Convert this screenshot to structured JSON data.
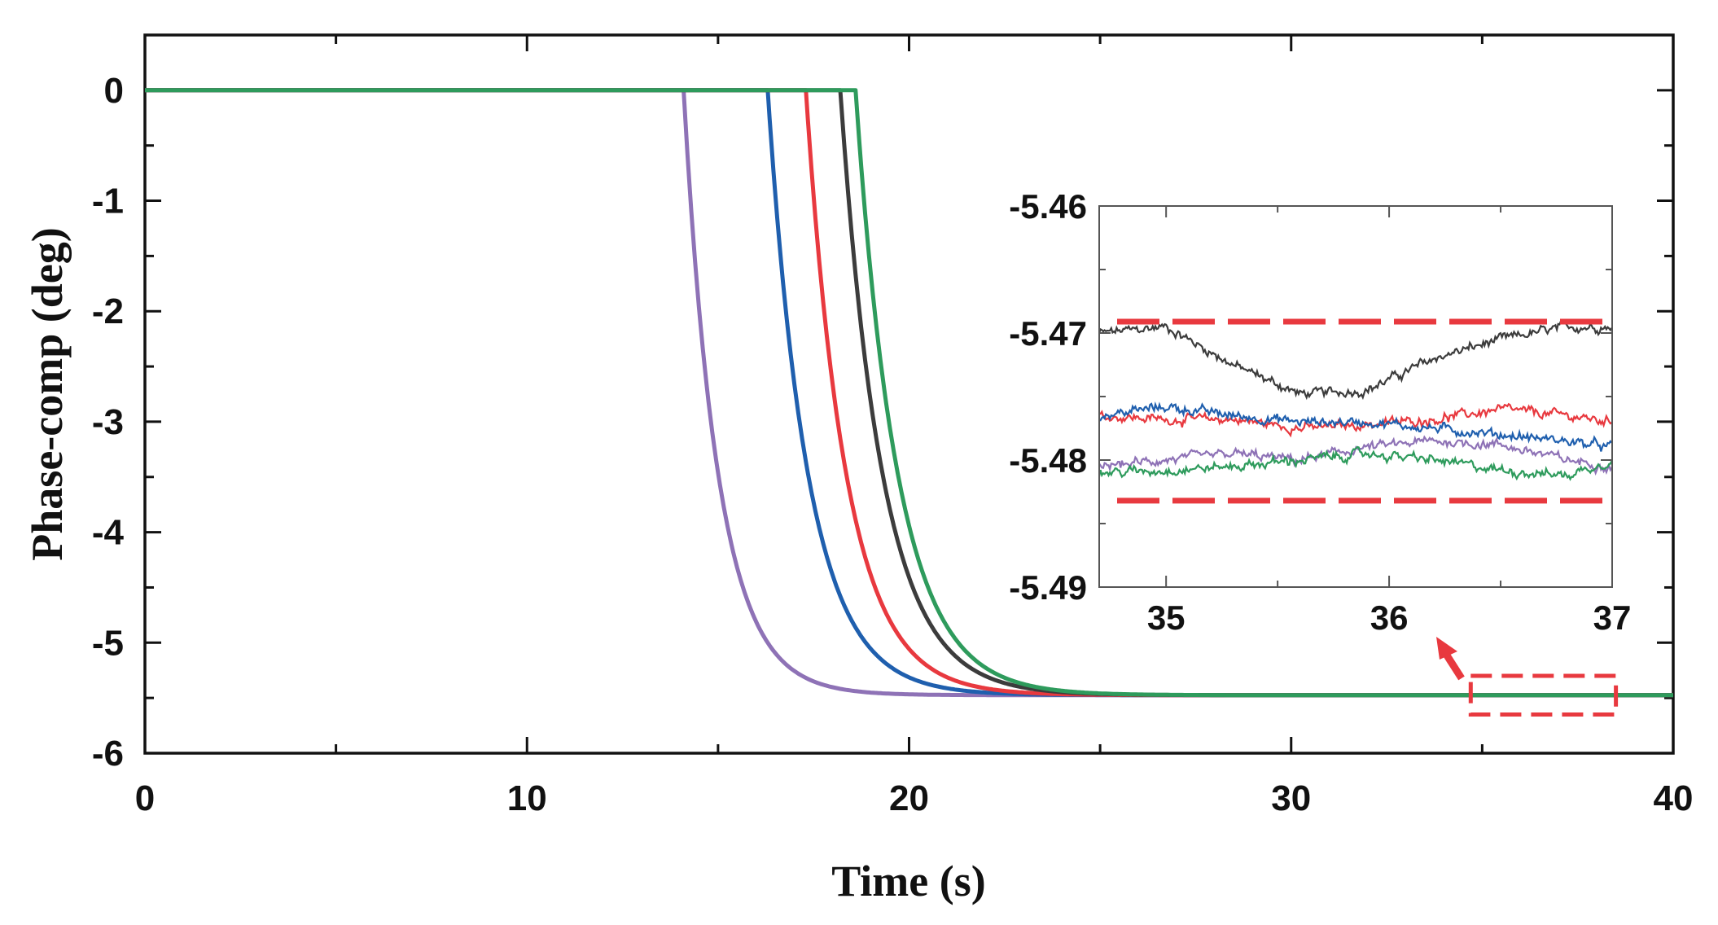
{
  "chart_data": [
    {
      "type": "line",
      "panel": "main",
      "title": "",
      "xlabel": "Time (s)",
      "ylabel": "Phase-comp (deg)",
      "xlim": [
        0,
        40
      ],
      "ylim": [
        -6,
        0.5
      ],
      "xticks": [
        0,
        10,
        20,
        30,
        40
      ],
      "xtick_labels": [
        "0",
        "10",
        "20",
        "30",
        "40"
      ],
      "yticks": [
        0,
        -1,
        -2,
        -3,
        -4,
        -5,
        -6
      ],
      "ytick_labels": [
        "0",
        "-1",
        "-2",
        "-3",
        "-4",
        "-5",
        "-6"
      ],
      "grid": false,
      "legend": "none",
      "steady_state": -5.475,
      "series": [
        {
          "name": "purple",
          "color": "#8e72b6",
          "drop_start": 14.1,
          "tau": 0.9
        },
        {
          "name": "blue",
          "color": "#1f5fae",
          "drop_start": 16.3,
          "tau": 1.05
        },
        {
          "name": "red",
          "color": "#e8393f",
          "drop_start": 17.3,
          "tau": 1.05
        },
        {
          "name": "black",
          "color": "#3c3c3c",
          "drop_start": 18.2,
          "tau": 1.1
        },
        {
          "name": "green",
          "color": "#2e9b5c",
          "drop_start": 18.6,
          "tau": 1.1
        }
      ],
      "zoom_box": {
        "x_range": [
          34.7,
          38.5
        ],
        "y_range": [
          -5.65,
          -5.3
        ]
      }
    },
    {
      "type": "line",
      "panel": "inset",
      "xlim": [
        34.7,
        37
      ],
      "ylim": [
        -5.49,
        -5.46
      ],
      "xticks": [
        35,
        36,
        37
      ],
      "xtick_labels": [
        "35",
        "36",
        "37"
      ],
      "yticks": [
        -5.46,
        -5.47,
        -5.48,
        -5.49
      ],
      "ytick_labels": [
        "-5.46",
        "-5.47",
        "-5.48",
        "-5.49"
      ],
      "bounds": [
        -5.4691,
        -5.4832
      ],
      "bounds_color": "#e8393f",
      "series": [
        {
          "name": "black",
          "color": "#3c3c3c",
          "x": [
            34.7,
            35.0,
            35.3,
            35.6,
            35.9,
            36.2,
            36.5,
            36.8,
            37.0
          ],
          "y": [
            -5.47,
            -5.4695,
            -5.4725,
            -5.4748,
            -5.4745,
            -5.472,
            -5.4705,
            -5.4695,
            -5.4695
          ]
        },
        {
          "name": "red",
          "color": "#e8393f",
          "x": [
            34.7,
            35.0,
            35.3,
            35.6,
            35.9,
            36.2,
            36.5,
            36.8,
            37.0
          ],
          "y": [
            -5.4765,
            -5.4768,
            -5.4768,
            -5.4775,
            -5.4772,
            -5.4768,
            -5.476,
            -5.4765,
            -5.477
          ]
        },
        {
          "name": "blue",
          "color": "#1f5fae",
          "x": [
            34.7,
            35.0,
            35.3,
            35.6,
            35.9,
            36.2,
            36.5,
            36.8,
            37.0
          ],
          "y": [
            -5.4765,
            -5.4758,
            -5.4765,
            -5.477,
            -5.477,
            -5.4775,
            -5.478,
            -5.4785,
            -5.479
          ]
        },
        {
          "name": "purple",
          "color": "#8e72b6",
          "x": [
            34.7,
            35.0,
            35.3,
            35.6,
            35.9,
            36.2,
            36.5,
            36.8,
            37.0
          ],
          "y": [
            -5.4805,
            -5.48,
            -5.4795,
            -5.48,
            -5.479,
            -5.4785,
            -5.4788,
            -5.48,
            -5.4805
          ]
        },
        {
          "name": "green",
          "color": "#2e9b5c",
          "x": [
            34.7,
            35.0,
            35.3,
            35.6,
            35.9,
            36.2,
            36.5,
            36.8,
            37.0
          ],
          "y": [
            -5.481,
            -5.4808,
            -5.4805,
            -5.48,
            -5.4795,
            -5.48,
            -5.4808,
            -5.4812,
            -5.48
          ]
        }
      ]
    }
  ]
}
